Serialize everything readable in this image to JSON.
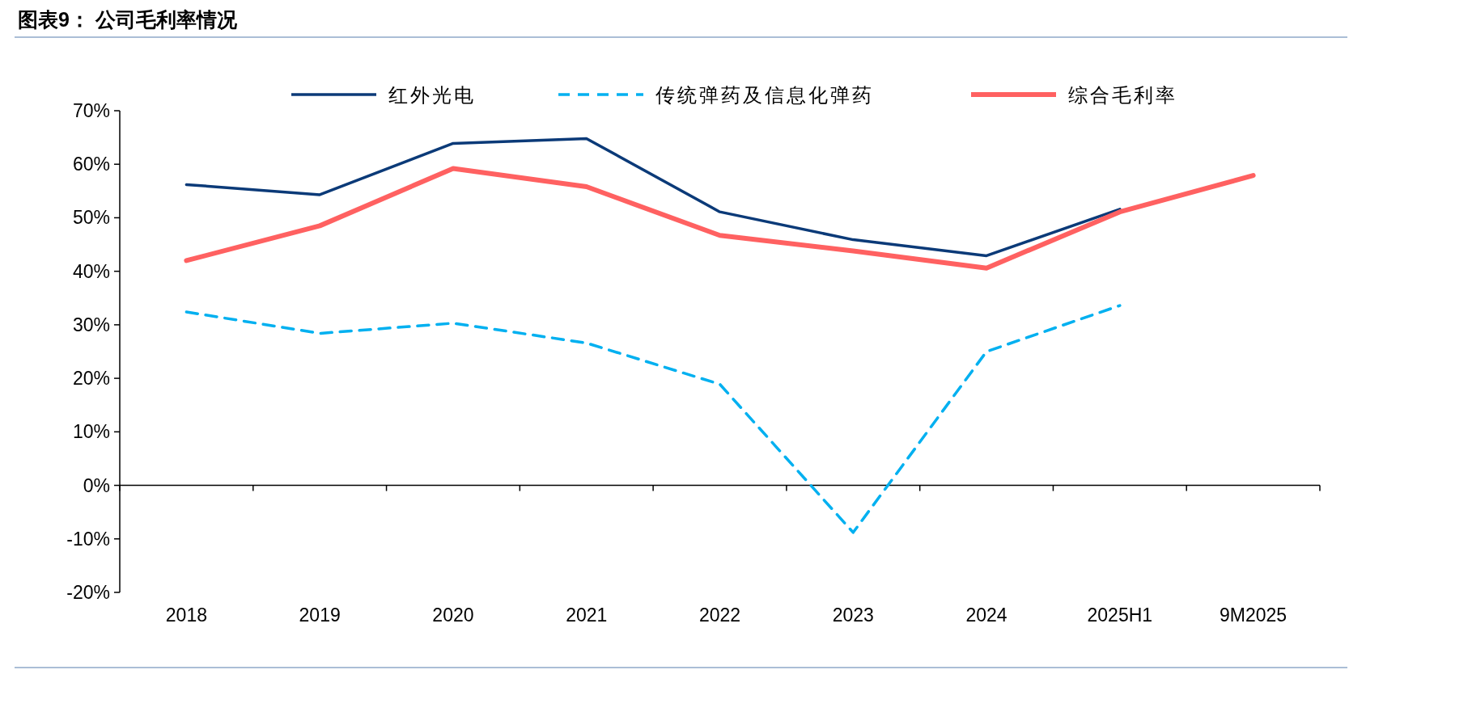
{
  "chart_data": {
    "type": "line",
    "title": "图表9： 公司毛利率情况",
    "categories": [
      "2018",
      "2019",
      "2020",
      "2021",
      "2022",
      "2023",
      "2024",
      "2025H1",
      "9M2025"
    ],
    "series": [
      {
        "name": "红外光电",
        "color": "#0b3a78",
        "line_style": "solid",
        "values": [
          56.2,
          54.3,
          63.9,
          64.8,
          51.1,
          45.9,
          42.9,
          51.6,
          null
        ]
      },
      {
        "name": "传统弹药及信息化弹药",
        "color": "#00b0f0",
        "line_style": "dashed",
        "values": [
          32.4,
          28.4,
          30.3,
          26.6,
          18.9,
          -8.8,
          25.0,
          33.6,
          null
        ]
      },
      {
        "name": "综合毛利率",
        "color": "#ff6161",
        "line_style": "solid",
        "values": [
          42.0,
          48.5,
          59.2,
          55.8,
          46.7,
          43.8,
          40.6,
          51.1,
          57.9
        ]
      }
    ],
    "ylim": [
      -20,
      70
    ],
    "yticks": [
      {
        "value": -20,
        "label": "-20%"
      },
      {
        "value": -10,
        "label": "-10%"
      },
      {
        "value": 0,
        "label": "0%"
      },
      {
        "value": 10,
        "label": "10%"
      },
      {
        "value": 20,
        "label": "20%"
      },
      {
        "value": 30,
        "label": "30%"
      },
      {
        "value": 40,
        "label": "40%"
      },
      {
        "value": 50,
        "label": "50%"
      },
      {
        "value": 60,
        "label": "60%"
      },
      {
        "value": 70,
        "label": "70%"
      }
    ],
    "legend": "top",
    "marker": "none"
  }
}
